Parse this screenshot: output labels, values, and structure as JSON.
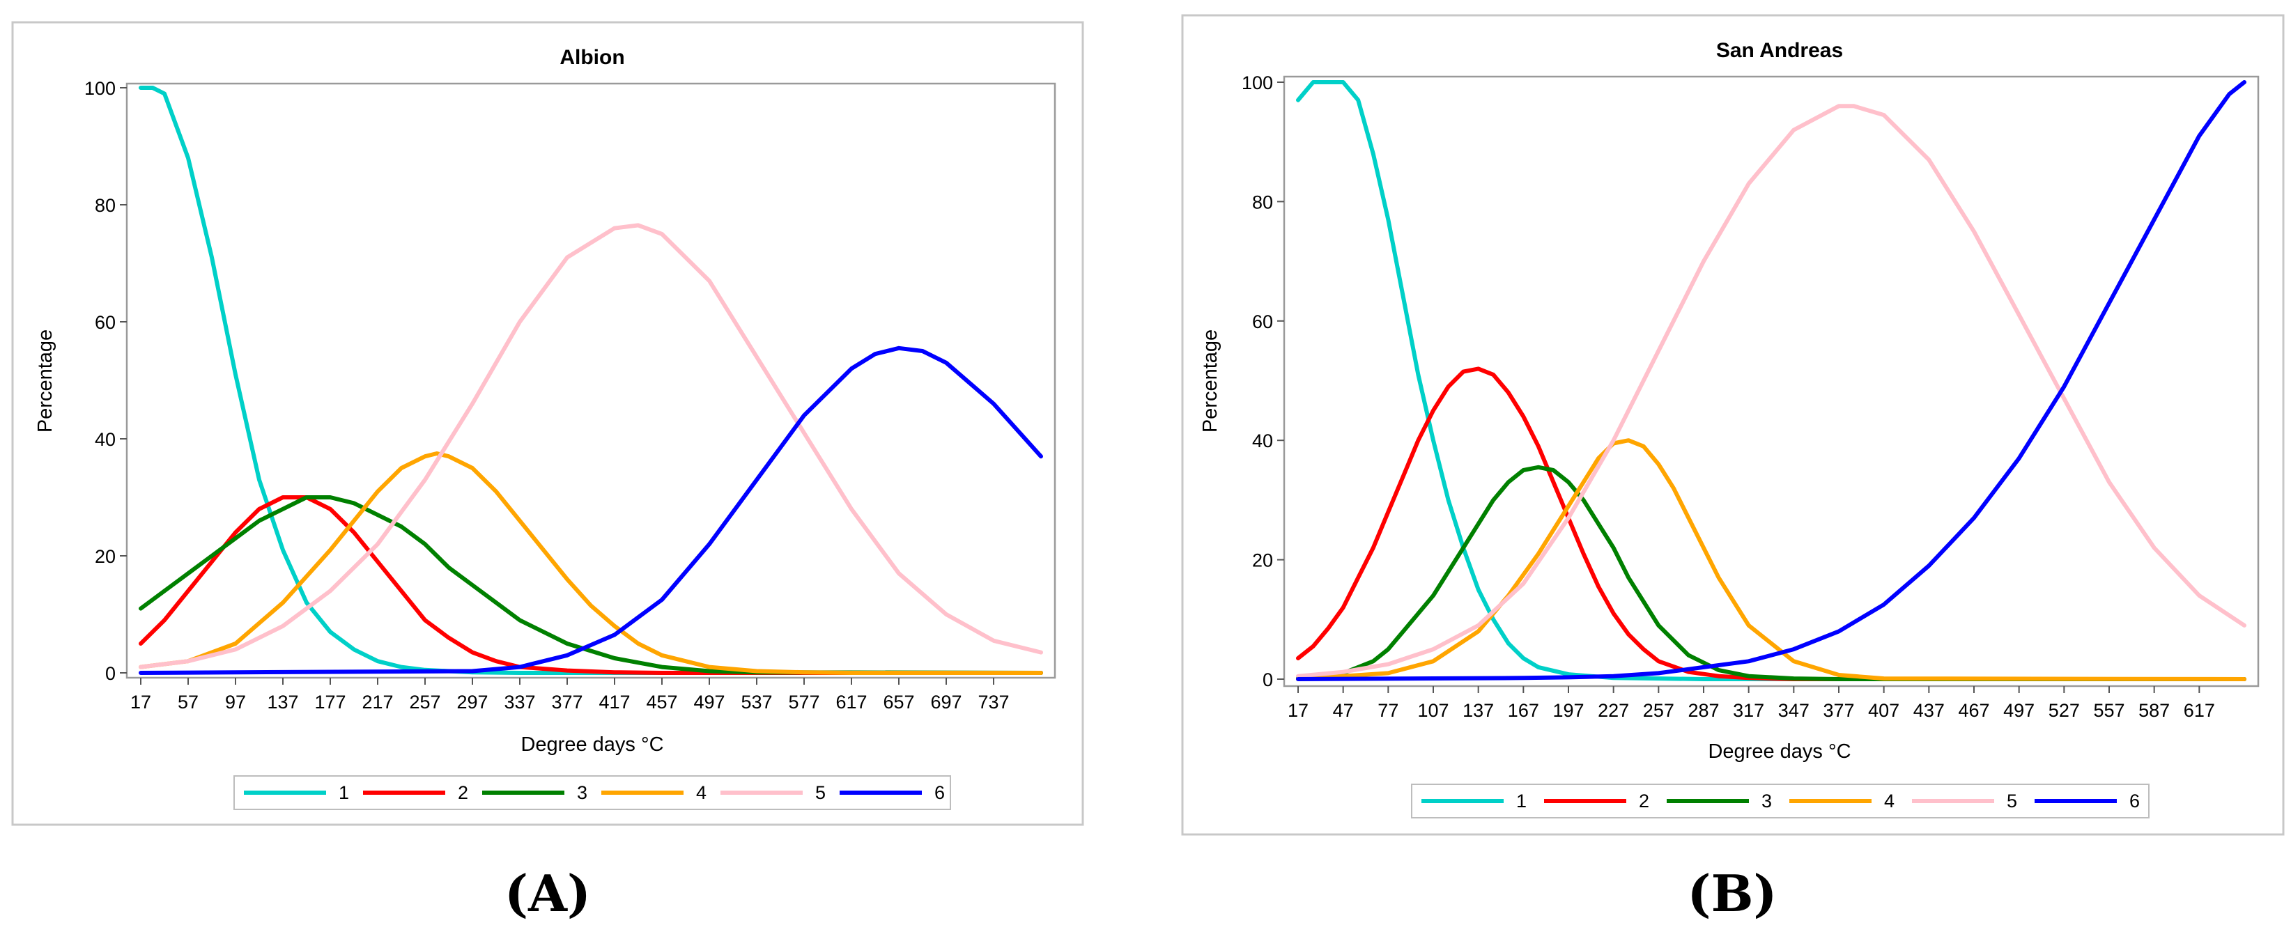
{
  "colors": {
    "1": "#00d0c8",
    "2": "#ff0000",
    "3": "#008000",
    "4": "#ffa500",
    "5": "#ffc0cb",
    "6": "#0000ff"
  },
  "chart_data": [
    {
      "panel": "(A)",
      "type": "line",
      "title": "Albion",
      "xlabel": "Degree days °C",
      "ylabel": "Percentage",
      "xlim": [
        17,
        777
      ],
      "ylim": [
        0,
        100
      ],
      "yticks": [
        "0",
        "20",
        "40",
        "60",
        "80",
        "100"
      ],
      "xticks": [
        "17",
        "57",
        "97",
        "137",
        "177",
        "217",
        "257",
        "297",
        "337",
        "377",
        "417",
        "457",
        "497",
        "537",
        "577",
        "617",
        "657",
        "697",
        "737"
      ],
      "legend": [
        "1",
        "2",
        "3",
        "4",
        "5",
        "6"
      ],
      "legend_position": "bottom",
      "series": [
        {
          "name": "1",
          "x": [
            17,
            27,
            37,
            57,
            77,
            97,
            117,
            137,
            157,
            177,
            197,
            217,
            237,
            257,
            277,
            297,
            337,
            377,
            777
          ],
          "y": [
            100,
            100,
            99,
            88,
            71,
            51,
            33,
            21,
            12,
            7,
            4,
            2,
            1,
            0.5,
            0.3,
            0.1,
            0,
            0,
            0
          ]
        },
        {
          "name": "2",
          "x": [
            17,
            37,
            57,
            77,
            97,
            117,
            137,
            157,
            177,
            197,
            217,
            237,
            257,
            277,
            297,
            317,
            337,
            377,
            417,
            457,
            777
          ],
          "y": [
            5,
            9,
            14,
            19,
            24,
            28,
            30,
            30,
            28,
            24,
            19,
            14,
            9,
            6,
            3.5,
            2,
            1,
            0.4,
            0.1,
            0,
            0
          ]
        },
        {
          "name": "3",
          "x": [
            17,
            37,
            57,
            77,
            97,
            117,
            137,
            157,
            177,
            197,
            217,
            237,
            257,
            277,
            297,
            317,
            337,
            357,
            377,
            417,
            457,
            497,
            537,
            777
          ],
          "y": [
            11,
            14,
            17,
            20,
            23,
            26,
            28,
            30,
            30,
            29,
            27,
            25,
            22,
            18,
            15,
            12,
            9,
            7,
            5,
            2.5,
            1,
            0.3,
            0.1,
            0
          ]
        },
        {
          "name": "4",
          "x": [
            17,
            57,
            97,
            137,
            177,
            197,
            217,
            237,
            257,
            267,
            277,
            297,
            317,
            337,
            357,
            377,
            397,
            417,
            437,
            457,
            497,
            537,
            577,
            617,
            777
          ],
          "y": [
            1,
            2,
            5,
            12,
            21,
            26,
            31,
            35,
            37,
            37.5,
            37,
            35,
            31,
            26,
            21,
            16,
            11.5,
            8,
            5,
            3,
            1,
            0.3,
            0.1,
            0,
            0
          ]
        },
        {
          "name": "5",
          "x": [
            17,
            57,
            97,
            137,
            177,
            217,
            257,
            297,
            337,
            377,
            417,
            437,
            457,
            497,
            537,
            577,
            617,
            657,
            697,
            737,
            777
          ],
          "y": [
            1,
            2,
            4,
            8,
            14,
            22,
            33,
            46,
            60,
            71,
            76,
            76.5,
            75,
            67,
            54,
            41,
            28,
            17,
            10,
            5.5,
            3.5
          ]
        },
        {
          "name": "6",
          "x": [
            17,
            297,
            337,
            377,
            417,
            457,
            497,
            537,
            577,
            617,
            637,
            657,
            677,
            697,
            737,
            777
          ],
          "y": [
            0,
            0.3,
            1,
            3,
            6.5,
            12.5,
            22,
            33,
            44,
            52,
            54.5,
            55.5,
            55,
            53,
            46,
            37
          ]
        }
      ]
    },
    {
      "panel": "(B)",
      "type": "line",
      "title": "San Andreas",
      "xlabel": "Degree days °C",
      "ylabel": "Percentage",
      "xlim": [
        17,
        647
      ],
      "ylim": [
        0,
        100
      ],
      "yticks": [
        "0",
        "20",
        "40",
        "60",
        "80",
        "100"
      ],
      "xticks": [
        "17",
        "47",
        "77",
        "107",
        "137",
        "167",
        "197",
        "227",
        "257",
        "287",
        "317",
        "347",
        "377",
        "407",
        "437",
        "467",
        "497",
        "527",
        "557",
        "587",
        "617"
      ],
      "legend": [
        "1",
        "2",
        "3",
        "4",
        "5",
        "6"
      ],
      "legend_position": "bottom",
      "series": [
        {
          "name": "1",
          "x": [
            17,
            27,
            37,
            47,
            57,
            67,
            77,
            87,
            97,
            107,
            117,
            127,
            137,
            147,
            157,
            167,
            177,
            197,
            227,
            257,
            287,
            647
          ],
          "y": [
            97,
            100,
            100,
            100,
            97,
            88,
            77,
            64,
            51,
            40,
            30,
            22,
            15,
            10,
            6,
            3.5,
            2,
            0.8,
            0.2,
            0.1,
            0,
            0
          ]
        },
        {
          "name": "2",
          "x": [
            17,
            27,
            37,
            47,
            57,
            67,
            77,
            87,
            97,
            107,
            117,
            127,
            137,
            147,
            157,
            167,
            177,
            187,
            197,
            207,
            217,
            227,
            237,
            247,
            257,
            277,
            297,
            317,
            347,
            647
          ],
          "y": [
            3.5,
            5.5,
            8.5,
            12,
            17,
            22,
            28,
            34,
            40,
            45,
            49,
            51.5,
            52,
            51,
            48,
            44,
            39,
            33,
            27,
            21,
            15.5,
            11,
            7.5,
            5,
            3,
            1.2,
            0.5,
            0.2,
            0,
            0
          ]
        },
        {
          "name": "3",
          "x": [
            17,
            47,
            67,
            77,
            87,
            107,
            127,
            147,
            157,
            167,
            177,
            187,
            197,
            207,
            217,
            227,
            237,
            247,
            257,
            277,
            297,
            317,
            347,
            377,
            647
          ],
          "y": [
            0.2,
            1,
            3,
            5,
            8,
            14,
            22,
            30,
            33,
            35,
            35.5,
            35,
            33,
            30,
            26,
            22,
            17,
            13,
            9,
            4,
            1.5,
            0.5,
            0.1,
            0,
            0
          ]
        },
        {
          "name": "4",
          "x": [
            17,
            77,
            107,
            137,
            157,
            177,
            197,
            207,
            217,
            227,
            237,
            247,
            257,
            267,
            277,
            287,
            297,
            317,
            347,
            377,
            407,
            647
          ],
          "y": [
            0,
            1,
            3,
            8,
            14,
            21,
            29,
            33,
            37,
            39.5,
            40,
            39,
            36,
            32,
            27,
            22,
            17,
            9,
            3,
            0.7,
            0.1,
            0
          ]
        },
        {
          "name": "5",
          "x": [
            17,
            47,
            77,
            107,
            137,
            167,
            197,
            227,
            257,
            287,
            317,
            347,
            377,
            387,
            407,
            437,
            467,
            497,
            527,
            557,
            587,
            617,
            647
          ],
          "y": [
            0.5,
            1.2,
            2.5,
            5,
            9,
            16,
            27,
            40,
            55,
            70,
            83,
            92,
            96,
            96,
            94.5,
            87,
            75,
            61,
            47,
            33,
            22,
            14,
            9
          ]
        },
        {
          "name": "6",
          "x": [
            17,
            167,
            197,
            227,
            257,
            287,
            317,
            347,
            377,
            407,
            437,
            467,
            497,
            527,
            557,
            587,
            617,
            637,
            647
          ],
          "y": [
            0,
            0.2,
            0.3,
            0.5,
            1,
            2,
            3,
            5,
            8,
            12.5,
            19,
            27,
            37,
            49,
            63,
            77,
            91,
            98,
            100
          ]
        }
      ]
    }
  ]
}
